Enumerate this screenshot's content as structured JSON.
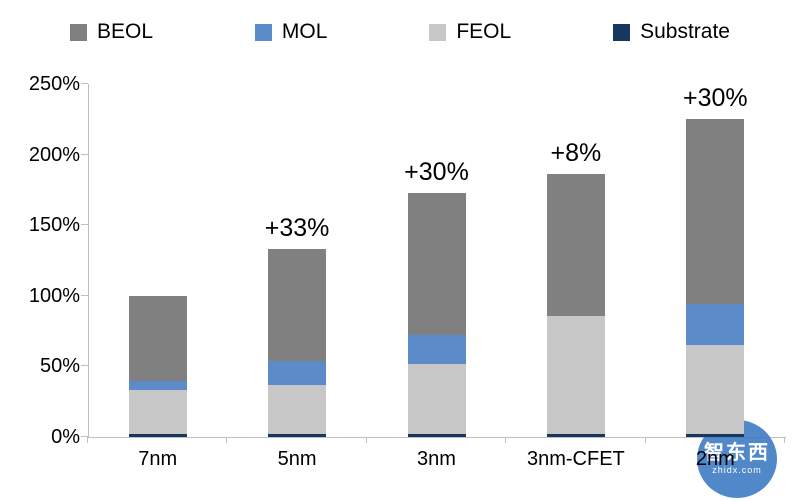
{
  "chart_data": {
    "type": "bar",
    "stacked": true,
    "title": "",
    "categories": [
      "7nm",
      "5nm",
      "3nm",
      "3nm-CFET",
      "2nm"
    ],
    "series": [
      {
        "name": "Substrate",
        "color": "#17375E",
        "values": [
          2,
          2,
          2,
          2,
          2
        ]
      },
      {
        "name": "FEOL",
        "color": "#C7C7C7",
        "values": [
          31,
          35,
          50,
          84,
          63
        ]
      },
      {
        "name": "MOL",
        "color": "#5B8BC9",
        "values": [
          7,
          17,
          20,
          0,
          29
        ]
      },
      {
        "name": "BEOL",
        "color": "#808080",
        "values": [
          60,
          79,
          101,
          100,
          131
        ]
      }
    ],
    "totals": [
      100,
      133,
      173,
      186,
      225
    ],
    "annotations": [
      "",
      "+33%",
      "+30%",
      "+8%",
      "+30%"
    ],
    "ylim": [
      0,
      250
    ],
    "y_ticks": [
      0,
      50,
      100,
      150,
      200,
      250
    ],
    "y_tick_labels": [
      "0%",
      "50%",
      "100%",
      "150%",
      "200%",
      "250%"
    ],
    "legend": [
      "BEOL",
      "MOL",
      "FEOL",
      "Substrate"
    ],
    "legend_position": "top",
    "grid": false,
    "axis_color": "#BFBFBF"
  },
  "watermark": {
    "text_cn": "智东西",
    "text_en": "zhidx.com"
  }
}
